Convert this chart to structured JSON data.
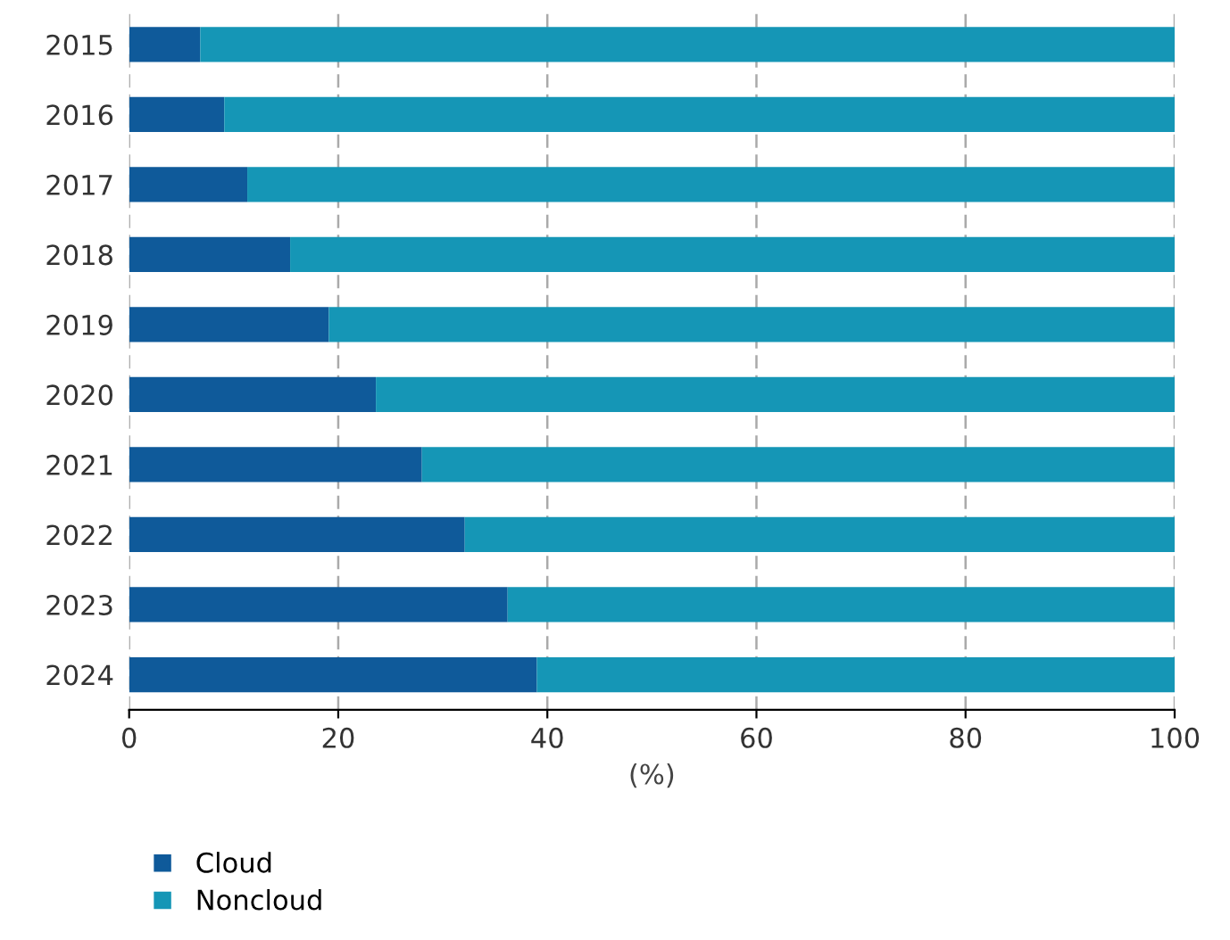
{
  "chart_data": {
    "type": "bar",
    "orientation": "horizontal",
    "stacked": true,
    "xlabel": "(%)",
    "categories": [
      "2015",
      "2016",
      "2017",
      "2018",
      "2019",
      "2020",
      "2021",
      "2022",
      "2023",
      "2024"
    ],
    "series": [
      {
        "name": "Cloud",
        "color": "#0f5a9a",
        "values": [
          6.8,
          9.1,
          11.3,
          15.4,
          19.1,
          23.6,
          28.0,
          32.1,
          36.2,
          39.0
        ]
      },
      {
        "name": "Noncloud",
        "color": "#1596b6",
        "values": [
          93.2,
          90.9,
          88.7,
          84.6,
          80.9,
          76.4,
          72.0,
          67.9,
          63.8,
          61.0
        ]
      }
    ],
    "xlim": [
      0,
      100
    ],
    "xticks": [
      0,
      20,
      40,
      60,
      80,
      100
    ],
    "grid": "x",
    "legend": "bottom left"
  }
}
